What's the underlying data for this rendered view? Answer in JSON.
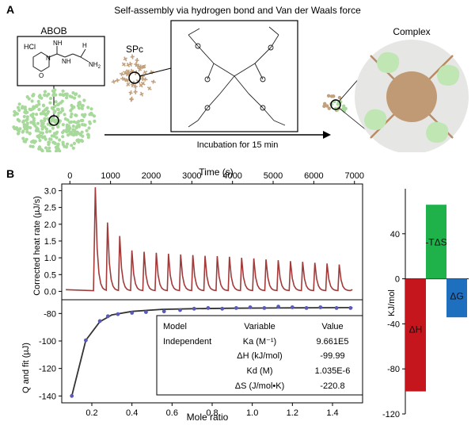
{
  "panel_a": {
    "label": "A",
    "title": "Self-assembly via hydrogen bond and Van der Waals force",
    "abob_label": "ABOB",
    "hcl_label": "HCl",
    "nh_label_1": "NH",
    "nh_label_2": "NH",
    "n_label": "N",
    "h_label_1": "H",
    "nh2_label": "NH",
    "nh2_sub": "2",
    "o_label": "O",
    "spc_label": "SPc",
    "complex_label": "Complex",
    "incubation_label": "Incubation for 15 min"
  },
  "panel_b": {
    "label": "B",
    "top_xlabel": "Time (s)",
    "top_ylabel": "Corrected heat rate (µJ/s)",
    "bottom_xlabel": "Mole ratio",
    "bottom_ylabel": "Q and fit (µJ)",
    "table": {
      "headers": [
        "Model",
        "Variable",
        "Value"
      ],
      "model": "Independent",
      "rows": [
        {
          "variable": "Ka (M⁻¹)",
          "value": "9.661E5"
        },
        {
          "variable": "ΔH (kJ/mol)",
          "value": "-99.99"
        },
        {
          "variable": "Kd (M)",
          "value": "1.035E-6"
        },
        {
          "variable": "ΔS (J/mol•K)",
          "value": "-220.8"
        }
      ]
    },
    "bar_ylabel": "KJ/mol"
  },
  "chart_data": [
    {
      "type": "line",
      "xlabel": "Time (s)",
      "ylabel": "Corrected heat rate (µJ/s)",
      "xlim": [
        -200,
        7200
      ],
      "ylim": [
        -0.25,
        3.2
      ],
      "xticks": [
        0,
        1000,
        2000,
        3000,
        4000,
        5000,
        6000,
        7000
      ],
      "yticks": [
        0.0,
        0.5,
        1.0,
        1.5,
        2.0,
        2.5,
        3.0
      ],
      "injection_times": [
        600,
        900,
        1200,
        1500,
        1800,
        2100,
        2400,
        2700,
        3000,
        3300,
        3600,
        3900,
        4200,
        4500,
        4800,
        5100,
        5400,
        5700,
        6000,
        6300,
        6600
      ],
      "peak_heights": [
        3.1,
        2.05,
        1.65,
        1.22,
        1.18,
        1.15,
        1.12,
        1.1,
        1.08,
        1.06,
        1.05,
        1.03,
        1.0,
        0.98,
        0.95,
        0.93,
        0.9,
        0.88,
        0.85,
        0.83,
        0.8
      ],
      "color": "#a33a3a"
    },
    {
      "type": "scatter",
      "xlabel": "Mole ratio",
      "ylabel": "Q and fit (µJ)",
      "xlim": [
        0.05,
        1.55
      ],
      "ylim": [
        -145,
        -70
      ],
      "xticks": [
        0.2,
        0.4,
        0.6,
        0.8,
        1.0,
        1.2,
        1.4
      ],
      "yticks": [
        -140,
        -120,
        -100,
        -80
      ],
      "points": [
        [
          0.1,
          -140
        ],
        [
          0.17,
          -99.5
        ],
        [
          0.24,
          -85.5
        ],
        [
          0.28,
          -82
        ],
        [
          0.33,
          -80.5
        ],
        [
          0.4,
          -79.5
        ],
        [
          0.47,
          -79
        ],
        [
          0.56,
          -78.5
        ],
        [
          0.64,
          -77.5
        ],
        [
          0.71,
          -76.5
        ],
        [
          0.78,
          -76
        ],
        [
          0.85,
          -76.5
        ],
        [
          0.92,
          -76
        ],
        [
          0.99,
          -75.5
        ],
        [
          1.06,
          -76
        ],
        [
          1.13,
          -75
        ],
        [
          1.2,
          -75.5
        ],
        [
          1.27,
          -76
        ],
        [
          1.34,
          -75.5
        ],
        [
          1.42,
          -76
        ],
        [
          1.49,
          -76
        ]
      ],
      "fit": [
        [
          0.1,
          -140
        ],
        [
          0.17,
          -99.5
        ],
        [
          0.24,
          -86
        ],
        [
          0.3,
          -81
        ],
        [
          0.4,
          -78.5
        ],
        [
          0.55,
          -77
        ],
        [
          0.7,
          -76.5
        ],
        [
          0.9,
          -76.2
        ],
        [
          1.1,
          -76
        ],
        [
          1.3,
          -75.8
        ],
        [
          1.5,
          -75.7
        ]
      ],
      "point_color": "#5a5ab8",
      "fit_color": "#333333"
    },
    {
      "type": "bar",
      "ylabel": "KJ/mol",
      "ylim": [
        -120,
        80
      ],
      "yticks": [
        -120,
        -80,
        -40,
        0,
        40
      ],
      "categories": [
        "ΔH",
        "-TΔS",
        "ΔG"
      ],
      "values": [
        -99.99,
        65.8,
        -34.2
      ],
      "colors": [
        "#c4161c",
        "#1fb24a",
        "#1f6fbf"
      ]
    }
  ]
}
